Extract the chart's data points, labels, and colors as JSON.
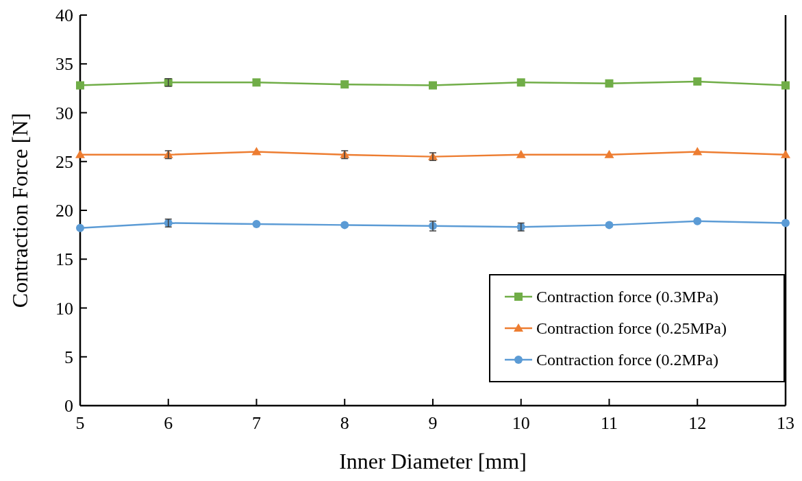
{
  "chart_data": {
    "type": "line",
    "xlabel": "Inner Diameter [mm]",
    "ylabel": "Contraction Force [N]",
    "x": [
      5,
      6,
      7,
      8,
      9,
      10,
      11,
      12,
      13
    ],
    "xlim": [
      5,
      13
    ],
    "xticks": [
      5,
      6,
      7,
      8,
      9,
      10,
      11,
      12,
      13
    ],
    "ylim": [
      0,
      40
    ],
    "yticks": [
      0,
      5,
      10,
      15,
      20,
      25,
      30,
      35,
      40
    ],
    "grid": false,
    "legend": "bottom right",
    "series": [
      {
        "name": "Contraction force (0.3MPa)",
        "color": "#70ad47",
        "marker": "square",
        "values": [
          32.8,
          33.1,
          33.1,
          32.9,
          32.8,
          33.1,
          33.0,
          33.2,
          32.8
        ],
        "errors": [
          null,
          0.4,
          null,
          null,
          null,
          null,
          null,
          null,
          null
        ]
      },
      {
        "name": "Contraction force (0.25MPa)",
        "color": "#ed7d31",
        "marker": "triangle",
        "values": [
          25.7,
          25.7,
          26.0,
          25.7,
          25.5,
          25.7,
          25.7,
          26.0,
          25.7
        ],
        "errors": [
          null,
          0.4,
          null,
          0.4,
          0.4,
          null,
          null,
          null,
          null
        ]
      },
      {
        "name": "Contraction force (0.2MPa)",
        "color": "#5b9bd5",
        "marker": "circle",
        "values": [
          18.2,
          18.7,
          18.6,
          18.5,
          18.4,
          18.3,
          18.5,
          18.9,
          18.7
        ],
        "errors": [
          null,
          0.4,
          null,
          null,
          0.5,
          0.4,
          null,
          null,
          null
        ]
      }
    ]
  }
}
